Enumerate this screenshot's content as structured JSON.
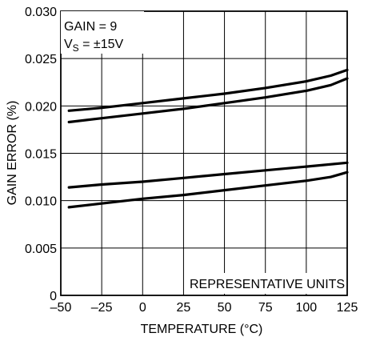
{
  "chart_data": {
    "type": "line",
    "xlabel": "TEMPERATURE (°C)",
    "ylabel": "GAIN ERROR (%)",
    "xlim": [
      -50,
      125
    ],
    "ylim": [
      0,
      0.03
    ],
    "xticks": [
      -50,
      -25,
      0,
      25,
      50,
      75,
      100,
      125
    ],
    "yticks": [
      0,
      0.005,
      0.01,
      0.015,
      0.02,
      0.025,
      0.03
    ],
    "xtick_labels": [
      "–50",
      "–25",
      "0",
      "25",
      "50",
      "75",
      "100",
      "125"
    ],
    "ytick_labels": [
      "0",
      "0.005",
      "0.010",
      "0.015",
      "0.020",
      "0.025",
      "0.030"
    ],
    "grid": true,
    "annotations": {
      "gain": "GAIN = 9",
      "vs_main": "V",
      "vs_sub": "S",
      "vs_value": " = ±15V",
      "units": "REPRESENTATIVE UNITS"
    },
    "series": [
      {
        "x": [
          -45,
          -25,
          0,
          25,
          50,
          75,
          100,
          115,
          125
        ],
        "y": [
          0.0195,
          0.0198,
          0.0203,
          0.0208,
          0.0213,
          0.0219,
          0.0226,
          0.0232,
          0.0238
        ]
      },
      {
        "x": [
          -45,
          -25,
          0,
          25,
          50,
          75,
          100,
          115,
          125
        ],
        "y": [
          0.0183,
          0.0187,
          0.0192,
          0.0197,
          0.0203,
          0.0209,
          0.0216,
          0.0222,
          0.0229
        ]
      },
      {
        "x": [
          -45,
          -25,
          0,
          25,
          50,
          75,
          100,
          125
        ],
        "y": [
          0.0114,
          0.0117,
          0.012,
          0.0124,
          0.0128,
          0.0132,
          0.0136,
          0.014
        ]
      },
      {
        "x": [
          -45,
          -25,
          0,
          25,
          50,
          75,
          100,
          115,
          125
        ],
        "y": [
          0.0093,
          0.0097,
          0.0102,
          0.0106,
          0.0111,
          0.0116,
          0.0121,
          0.0125,
          0.013
        ]
      }
    ]
  }
}
